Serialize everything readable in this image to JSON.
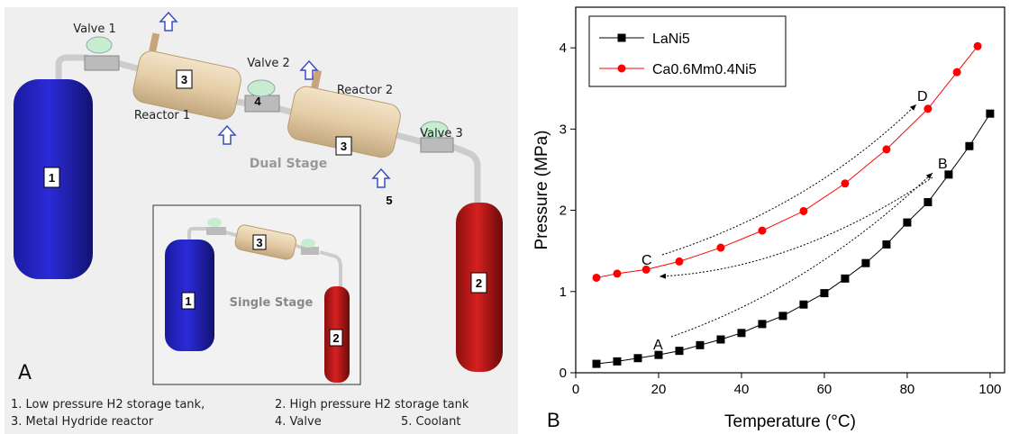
{
  "panel_a": {
    "label": "A",
    "valve_1": "Valve 1",
    "valve_2": "Valve 2",
    "valve_3": "Valve 3",
    "reactor_1": "Reactor 1",
    "reactor_2": "Reactor 2",
    "tag_1": "1",
    "tag_2": "2",
    "tag_3a": "3",
    "tag_3b": "3",
    "tag_4": "4",
    "tag_5": "5",
    "dual_stage": "Dual Stage",
    "single_stage": "Single Stage",
    "inset_1": "1",
    "inset_2": "2",
    "inset_3": "3",
    "legend": [
      "1. Low pressure H2 storage tank,",
      "2. High pressure H2 storage tank",
      "3. Metal Hydride reactor",
      "4. Valve",
      "5. Coolant"
    ]
  },
  "chart_data": {
    "type": "line",
    "panel_label": "B",
    "x_label": "Temperature (°C)",
    "y_label": "Pressure (MPa)",
    "xlim": [
      0,
      103.5
    ],
    "ylim": [
      0,
      4.5
    ],
    "xticks": [
      0,
      20,
      40,
      60,
      80,
      100
    ],
    "yticks": [
      0,
      1,
      2,
      3,
      4
    ],
    "legend": "top-left",
    "series": [
      {
        "name": "LaNi5",
        "color": "#000000",
        "marker": "square",
        "x": [
          5,
          10,
          15,
          20,
          25,
          30,
          35,
          40,
          45,
          50,
          55,
          60,
          65,
          70,
          75,
          80,
          85,
          90,
          95,
          100
        ],
        "values": [
          0.11,
          0.14,
          0.18,
          0.22,
          0.27,
          0.34,
          0.41,
          0.49,
          0.6,
          0.7,
          0.84,
          0.98,
          1.16,
          1.35,
          1.58,
          1.85,
          2.1,
          2.44,
          2.79,
          3.19
        ]
      },
      {
        "name": "Ca0.6Mm0.4Ni5",
        "color": "#ff0000",
        "marker": "circle",
        "x": [
          5,
          10,
          17,
          25,
          35,
          45,
          55,
          65,
          75,
          85,
          92,
          97
        ],
        "values": [
          1.17,
          1.22,
          1.27,
          1.37,
          1.54,
          1.75,
          1.99,
          2.33,
          2.75,
          3.25,
          3.7,
          4.02
        ]
      }
    ],
    "annotations": [
      "A",
      "B",
      "C",
      "D"
    ]
  }
}
